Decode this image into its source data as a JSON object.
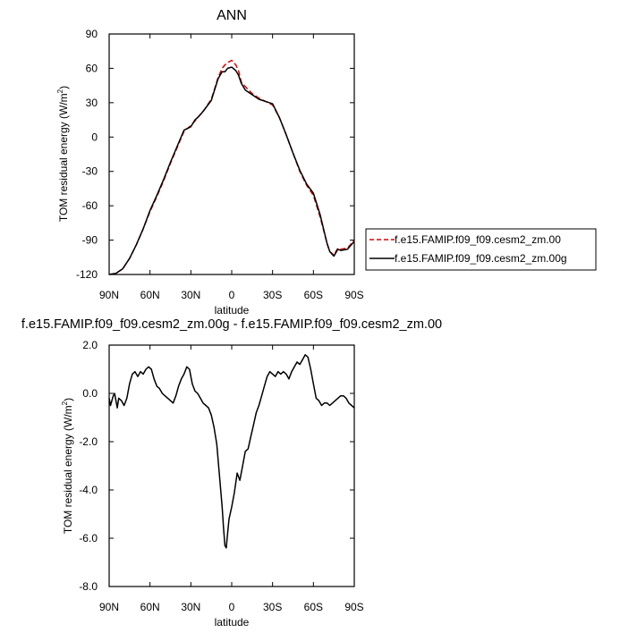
{
  "chart_data": [
    {
      "type": "line",
      "title": "ANN",
      "xlabel": "latitude",
      "ylabel": "TOM residual energy",
      "ylabel_units": "(W/m",
      "ylabel_sup": "2",
      "ylabel_close": ")",
      "xlim": [
        90,
        -90
      ],
      "ylim": [
        -120,
        90
      ],
      "xticks": [
        {
          "value": 90,
          "label": "90N"
        },
        {
          "value": 60,
          "label": "60N"
        },
        {
          "value": 30,
          "label": "30N"
        },
        {
          "value": 0,
          "label": "0"
        },
        {
          "value": -30,
          "label": "30S"
        },
        {
          "value": -60,
          "label": "60S"
        },
        {
          "value": -90,
          "label": "90S"
        }
      ],
      "yticks": [
        {
          "value": 90,
          "label": "90"
        },
        {
          "value": 60,
          "label": "60"
        },
        {
          "value": 30,
          "label": "30"
        },
        {
          "value": 0,
          "label": "0"
        },
        {
          "value": -30,
          "label": "-30"
        },
        {
          "value": -60,
          "label": "-60"
        },
        {
          "value": -90,
          "label": "-90"
        },
        {
          "value": -120,
          "label": "-120"
        }
      ],
      "legend_position": "right",
      "series": [
        {
          "name": "f.e15.FAMIP.f09_f09.cesm2_zm.00",
          "color": "#dd0000",
          "dashed": true,
          "x": [
            90,
            85,
            80,
            75,
            70,
            65,
            60,
            55,
            50,
            45,
            40,
            35,
            30,
            27,
            25,
            22,
            20,
            15,
            10,
            7,
            5,
            3,
            0,
            -3,
            -5,
            -7,
            -10,
            -15,
            -20,
            -25,
            -30,
            -35,
            -40,
            -45,
            -50,
            -55,
            -60,
            -65,
            -70,
            -72,
            -75,
            -78,
            -80,
            -85,
            -90
          ],
          "y": [
            -120,
            -119,
            -115,
            -106,
            -94,
            -80,
            -65,
            -52,
            -38,
            -23,
            -9,
            5,
            10,
            14,
            17,
            21,
            24,
            33,
            52,
            60,
            63,
            65,
            67,
            63,
            58,
            48,
            44,
            38,
            34,
            31,
            28,
            17,
            2,
            -14,
            -30,
            -42,
            -51,
            -70,
            -93,
            -100,
            -103,
            -97,
            -98,
            -97,
            -90
          ]
        },
        {
          "name": "f.e15.FAMIP.f09_f09.cesm2_zm.00g",
          "color": "#000000",
          "dashed": false,
          "x": [
            90,
            85,
            80,
            75,
            70,
            65,
            60,
            55,
            50,
            45,
            40,
            35,
            30,
            27,
            25,
            22,
            20,
            15,
            10,
            7,
            5,
            3,
            0,
            -3,
            -5,
            -7,
            -10,
            -15,
            -20,
            -25,
            -30,
            -35,
            -40,
            -45,
            -50,
            -55,
            -60,
            -65,
            -70,
            -72,
            -75,
            -78,
            -80,
            -85,
            -90
          ],
          "y": [
            -120,
            -119,
            -115,
            -106,
            -94,
            -80,
            -64,
            -51,
            -37,
            -22,
            -8,
            6,
            9,
            15,
            17,
            21,
            24,
            32,
            51,
            57,
            57,
            60,
            61,
            58,
            54,
            47,
            41,
            37,
            33,
            31,
            29,
            17,
            2,
            -14,
            -29,
            -41,
            -49,
            -68,
            -93,
            -100,
            -104,
            -98,
            -99,
            -98,
            -91
          ]
        }
      ]
    },
    {
      "type": "line",
      "title": "f.e15.FAMIP.f09_f09.cesm2_zm.00g - f.e15.FAMIP.f09_f09.cesm2_zm.00",
      "xlabel": "latitude",
      "ylabel": "TOM residual energy",
      "ylabel_units": "(W/m",
      "ylabel_sup": "2",
      "ylabel_close": ")",
      "xlim": [
        90,
        -90
      ],
      "ylim": [
        -8,
        2
      ],
      "xticks": [
        {
          "value": 90,
          "label": "90N"
        },
        {
          "value": 60,
          "label": "60N"
        },
        {
          "value": 30,
          "label": "30N"
        },
        {
          "value": 0,
          "label": "0"
        },
        {
          "value": -30,
          "label": "30S"
        },
        {
          "value": -60,
          "label": "60S"
        },
        {
          "value": -90,
          "label": "90S"
        }
      ],
      "yticks": [
        {
          "value": 2,
          "label": "2.0"
        },
        {
          "value": 0,
          "label": "0.0"
        },
        {
          "value": -2,
          "label": "-2.0"
        },
        {
          "value": -4,
          "label": "-4.0"
        },
        {
          "value": -6,
          "label": "-6.0"
        },
        {
          "value": -8,
          "label": "-8.0"
        }
      ],
      "series": [
        {
          "color": "#000000",
          "dashed": false,
          "x": [
            90,
            89,
            87,
            86,
            85,
            84,
            83,
            81,
            79,
            77,
            75,
            73,
            71,
            69,
            67,
            65,
            63,
            61,
            59,
            57,
            55,
            53,
            51,
            49,
            47,
            45,
            43,
            41,
            39,
            37,
            35,
            33,
            31,
            29,
            27,
            25,
            23,
            21,
            19,
            17,
            15,
            13,
            11,
            9,
            7,
            6,
            5,
            4,
            3,
            2,
            0,
            -2,
            -4,
            -6,
            -8,
            -10,
            -12,
            -14,
            -16,
            -18,
            -20,
            -22,
            -24,
            -26,
            -28,
            -30,
            -32,
            -34,
            -36,
            -38,
            -40,
            -42,
            -44,
            -46,
            -48,
            -50,
            -52,
            -54,
            -56,
            -58,
            -60,
            -62,
            -64,
            -66,
            -68,
            -70,
            -72,
            -74,
            -76,
            -78,
            -80,
            -82,
            -84,
            -86,
            -88,
            -90
          ],
          "y": [
            -0.2,
            -0.5,
            -0.1,
            0.0,
            -0.3,
            -0.6,
            -0.2,
            -0.3,
            -0.5,
            -0.2,
            0.4,
            0.8,
            0.9,
            0.7,
            0.9,
            0.8,
            1.0,
            1.1,
            1.0,
            0.6,
            0.3,
            0.2,
            0.0,
            -0.1,
            -0.2,
            -0.3,
            -0.4,
            -0.1,
            0.3,
            0.6,
            0.8,
            1.1,
            1.0,
            0.4,
            0.1,
            0.0,
            -0.2,
            -0.4,
            -0.5,
            -0.6,
            -0.9,
            -1.4,
            -2.1,
            -3.4,
            -4.7,
            -5.6,
            -6.3,
            -6.4,
            -5.8,
            -5.2,
            -4.7,
            -4.1,
            -3.3,
            -3.6,
            -3.0,
            -2.4,
            -2.3,
            -1.8,
            -1.3,
            -0.8,
            -0.5,
            -0.1,
            0.3,
            0.7,
            0.9,
            0.8,
            0.7,
            0.9,
            0.8,
            0.9,
            0.8,
            0.6,
            0.9,
            1.1,
            1.3,
            1.2,
            1.4,
            1.6,
            1.5,
            1.0,
            0.4,
            -0.2,
            -0.3,
            -0.5,
            -0.4,
            -0.4,
            -0.5,
            -0.4,
            -0.3,
            -0.2,
            -0.1,
            -0.1,
            -0.2,
            -0.4,
            -0.5,
            -0.6
          ]
        }
      ]
    }
  ]
}
